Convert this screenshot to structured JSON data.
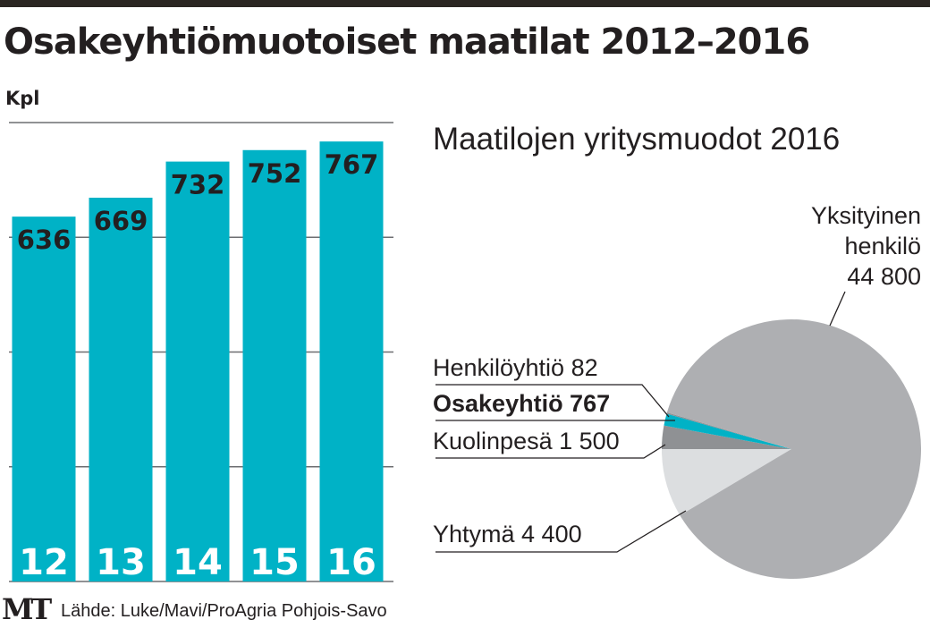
{
  "title": "Osakeyhtiömuotoiset maatilat 2012–2016",
  "source": "Lähde: Luke/Mavi/ProAgria Pohjois-Savo",
  "logo": "MT",
  "colors": {
    "bar": "#00b2c6",
    "pie_main": "#aeafb2",
    "pie_dark": "#8f9194",
    "pie_light": "#dcdee0",
    "teal": "#00b2c6"
  },
  "chart_data": [
    {
      "type": "bar",
      "title": "Osakeyhtiömuotoiset maatilat 2012–2016",
      "ylabel": "Kpl",
      "categories": [
        "12",
        "13",
        "14",
        "15",
        "16"
      ],
      "values": [
        636,
        669,
        732,
        752,
        767
      ],
      "ylim": [
        0,
        800
      ],
      "gridlines": [
        0,
        200,
        400,
        600,
        800
      ],
      "grid": true
    },
    {
      "type": "pie",
      "title": "Maatilojen yritysmuodot 2016",
      "slices": [
        {
          "label": "Yhtymä 4 400",
          "value": 4400,
          "color": "#dcdee0",
          "bold": false
        },
        {
          "label": "Kuolinpesä 1 500",
          "value": 1500,
          "color": "#8f9194",
          "bold": false
        },
        {
          "label": "Osakeyhtiö 767",
          "value": 767,
          "color": "#00b2c6",
          "bold": true
        },
        {
          "label": "Henkilöyhtiö 82",
          "value": 82,
          "color": "#8f9194",
          "bold": false
        },
        {
          "label_lines": [
            "Yksityinen",
            "henkilö",
            "44 800"
          ],
          "value": 44800,
          "color": "#aeafb2",
          "bold": false
        }
      ]
    }
  ]
}
